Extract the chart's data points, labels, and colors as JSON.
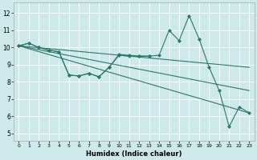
{
  "xlabel": "Humidex (Indice chaleur)",
  "background_color": "#cde9e9",
  "grid_color": "#ffffff",
  "line_color": "#2a7868",
  "xlim": [
    -0.5,
    23.5
  ],
  "ylim": [
    4.6,
    12.6
  ],
  "yticks": [
    5,
    6,
    7,
    8,
    9,
    10,
    11,
    12
  ],
  "xticks": [
    0,
    1,
    2,
    3,
    4,
    5,
    6,
    7,
    8,
    9,
    10,
    11,
    12,
    13,
    14,
    15,
    16,
    17,
    18,
    19,
    20,
    21,
    22,
    23
  ],
  "line1_x": [
    0,
    1,
    2,
    3,
    4,
    5,
    6,
    7,
    8,
    9,
    10,
    11,
    12,
    13,
    14,
    15,
    16,
    17,
    18,
    19,
    20,
    21,
    22,
    23
  ],
  "line1_y": [
    10.1,
    10.25,
    10.0,
    9.85,
    9.75,
    8.4,
    8.35,
    8.5,
    8.3,
    8.85,
    9.6,
    9.55,
    9.5,
    9.5,
    9.55,
    11.0,
    10.4,
    11.85,
    10.5,
    8.85,
    7.5,
    5.4,
    6.55,
    6.2
  ],
  "line2_x": [
    0,
    1,
    2,
    3,
    4,
    5,
    6,
    7,
    8,
    9,
    10,
    11,
    12,
    13
  ],
  "line2_y": [
    10.1,
    10.25,
    10.0,
    9.85,
    9.75,
    8.4,
    8.35,
    8.5,
    8.3,
    8.85,
    9.55,
    9.5,
    9.5,
    9.5
  ],
  "trend1_x": [
    0,
    23
  ],
  "trend1_y": [
    10.1,
    8.85
  ],
  "trend2_x": [
    0,
    23
  ],
  "trend2_y": [
    10.1,
    7.5
  ],
  "trend3_x": [
    0,
    23
  ],
  "trend3_y": [
    10.1,
    6.2
  ],
  "xlabel_fontsize": 6,
  "tick_fontsize_x": 4.5,
  "tick_fontsize_y": 5.5
}
